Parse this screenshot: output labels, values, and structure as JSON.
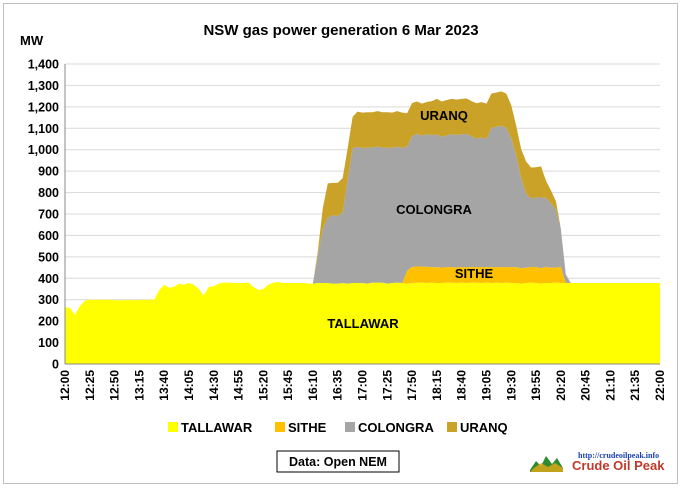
{
  "chart_data": {
    "type": "area",
    "stacked": true,
    "title": "NSW gas power generation 6 Mar 2023",
    "ylabel": "MW",
    "ylim": [
      0,
      1400
    ],
    "yticks": [
      "0",
      "100",
      "200",
      "300",
      "400",
      "500",
      "600",
      "700",
      "800",
      "900",
      "1,000",
      "1,100",
      "1,200",
      "1,300",
      "1,400"
    ],
    "xlabels": [
      "12:00",
      "12:25",
      "12:50",
      "13:15",
      "13:40",
      "14:05",
      "14:30",
      "14:55",
      "15:20",
      "15:45",
      "16:10",
      "16:35",
      "17:00",
      "17:25",
      "17:50",
      "18:15",
      "18:40",
      "19:05",
      "19:30",
      "19:55",
      "20:20",
      "20:45",
      "21:10",
      "21:35",
      "22:00"
    ],
    "grid": true,
    "legend_position": "bottom",
    "x": [
      "12:00",
      "12:05",
      "12:10",
      "12:15",
      "12:20",
      "12:25",
      "12:30",
      "12:35",
      "12:40",
      "12:45",
      "12:50",
      "12:55",
      "13:00",
      "13:05",
      "13:10",
      "13:15",
      "13:20",
      "13:25",
      "13:30",
      "13:35",
      "13:40",
      "13:45",
      "13:50",
      "13:55",
      "14:00",
      "14:05",
      "14:10",
      "14:15",
      "14:20",
      "14:25",
      "14:30",
      "14:35",
      "14:40",
      "14:45",
      "14:50",
      "14:55",
      "15:00",
      "15:05",
      "15:10",
      "15:15",
      "15:20",
      "15:25",
      "15:30",
      "15:35",
      "15:40",
      "15:45",
      "15:50",
      "15:55",
      "16:00",
      "16:05",
      "16:10",
      "16:15",
      "16:20",
      "16:25",
      "16:30",
      "16:35",
      "16:40",
      "16:45",
      "16:50",
      "16:55",
      "17:00",
      "17:05",
      "17:10",
      "17:15",
      "17:20",
      "17:25",
      "17:30",
      "17:35",
      "17:40",
      "17:45",
      "17:50",
      "17:55",
      "18:00",
      "18:05",
      "18:10",
      "18:15",
      "18:20",
      "18:25",
      "18:30",
      "18:35",
      "18:40",
      "18:45",
      "18:50",
      "18:55",
      "19:00",
      "19:05",
      "19:10",
      "19:15",
      "19:20",
      "19:25",
      "19:30",
      "19:35",
      "19:40",
      "19:45",
      "19:50",
      "19:55",
      "20:00",
      "20:05",
      "20:10",
      "20:15",
      "20:20",
      "20:25",
      "20:30",
      "20:35",
      "20:40",
      "20:45",
      "20:50",
      "20:55",
      "21:00",
      "21:05",
      "21:10",
      "21:15",
      "21:20",
      "21:25",
      "21:30",
      "21:35",
      "21:40",
      "21:45",
      "21:50",
      "21:55",
      "22:00"
    ],
    "series": [
      {
        "name": "TALLAWAR",
        "color": "#ffff00",
        "values": [
          265,
          262,
          230,
          270,
          295,
          300,
          300,
          300,
          300,
          300,
          298,
          297,
          298,
          298,
          298,
          298,
          300,
          300,
          300,
          345,
          370,
          355,
          360,
          375,
          370,
          378,
          370,
          350,
          320,
          360,
          362,
          375,
          380,
          380,
          378,
          378,
          378,
          380,
          360,
          345,
          350,
          370,
          380,
          382,
          378,
          378,
          378,
          378,
          378,
          375,
          375,
          378,
          378,
          378,
          375,
          375,
          378,
          375,
          378,
          378,
          378,
          375,
          380,
          380,
          380,
          375,
          378,
          380,
          378,
          375,
          378,
          380,
          380,
          378,
          380,
          378,
          378,
          380,
          380,
          378,
          380,
          378,
          380,
          380,
          378,
          380,
          378,
          380,
          378,
          380,
          378,
          378,
          375,
          378,
          380,
          378,
          375,
          378,
          378,
          380,
          378,
          378,
          378,
          378,
          378,
          378,
          378,
          378,
          378,
          378,
          378,
          378,
          378,
          378,
          378,
          378,
          378,
          378,
          378,
          378,
          378
        ]
      },
      {
        "name": "SITHE",
        "color": "#ffc000",
        "values": [
          0,
          0,
          0,
          0,
          0,
          0,
          0,
          0,
          0,
          0,
          0,
          0,
          0,
          0,
          0,
          0,
          0,
          0,
          0,
          0,
          0,
          0,
          0,
          0,
          0,
          0,
          0,
          0,
          0,
          0,
          0,
          0,
          0,
          0,
          0,
          0,
          0,
          0,
          0,
          0,
          0,
          0,
          0,
          0,
          0,
          0,
          0,
          0,
          0,
          0,
          0,
          0,
          0,
          0,
          0,
          0,
          0,
          0,
          0,
          0,
          0,
          0,
          0,
          0,
          0,
          0,
          0,
          0,
          0,
          60,
          75,
          75,
          75,
          75,
          72,
          74,
          72,
          72,
          72,
          73,
          72,
          74,
          72,
          72,
          74,
          72,
          74,
          72,
          74,
          72,
          74,
          74,
          72,
          72,
          72,
          75,
          72,
          75,
          72,
          70,
          75,
          0,
          0,
          0,
          0,
          0,
          0,
          0,
          0,
          0,
          0,
          0,
          0,
          0,
          0,
          0,
          0,
          0,
          0,
          0,
          0
        ]
      },
      {
        "name": "COLONGRA",
        "color": "#a5a5a5",
        "values": [
          0,
          0,
          0,
          0,
          0,
          0,
          0,
          0,
          0,
          0,
          0,
          0,
          0,
          0,
          0,
          0,
          0,
          0,
          0,
          0,
          0,
          0,
          0,
          0,
          0,
          0,
          0,
          0,
          0,
          0,
          0,
          0,
          0,
          0,
          0,
          0,
          0,
          0,
          0,
          0,
          0,
          0,
          0,
          0,
          0,
          0,
          0,
          0,
          0,
          0,
          0,
          130,
          250,
          305,
          320,
          315,
          330,
          485,
          630,
          635,
          630,
          635,
          630,
          635,
          630,
          635,
          630,
          635,
          630,
          580,
          610,
          620,
          610,
          620,
          615,
          620,
          610,
          615,
          620,
          618,
          620,
          622,
          610,
          600,
          605,
          598,
          650,
          655,
          660,
          650,
          600,
          520,
          420,
          345,
          320,
          325,
          330,
          322,
          300,
          270,
          180,
          40,
          0,
          0,
          0,
          0,
          0,
          0,
          0,
          0,
          0,
          0,
          0,
          0,
          0,
          0,
          0,
          0,
          0,
          0,
          0
        ]
      },
      {
        "name": "URANQ",
        "color": "#c9a227",
        "values": [
          0,
          0,
          0,
          0,
          0,
          0,
          0,
          0,
          0,
          0,
          0,
          0,
          0,
          0,
          0,
          0,
          0,
          0,
          0,
          0,
          0,
          0,
          0,
          0,
          0,
          0,
          0,
          0,
          0,
          0,
          0,
          0,
          0,
          0,
          0,
          0,
          0,
          0,
          0,
          0,
          0,
          0,
          0,
          0,
          0,
          0,
          0,
          0,
          0,
          0,
          0,
          20,
          100,
          160,
          150,
          155,
          160,
          145,
          145,
          165,
          165,
          165,
          165,
          165,
          165,
          165,
          165,
          165,
          165,
          155,
          155,
          150,
          150,
          150,
          160,
          165,
          165,
          165,
          165,
          165,
          165,
          165,
          165,
          165,
          165,
          165,
          160,
          160,
          160,
          160,
          155,
          140,
          135,
          150,
          145,
          140,
          145,
          80,
          60,
          40,
          0,
          0,
          0,
          0,
          0,
          0,
          0,
          0,
          0,
          0,
          0,
          0,
          0,
          0,
          0,
          0,
          0,
          0,
          0,
          0,
          0
        ]
      }
    ],
    "annotations": [
      "URANQ",
      "COLONGRA",
      "SITHE",
      "TALLAWAR"
    ],
    "source": "Data: Open NEM"
  },
  "branding": {
    "url": "http://crudeoilpeak.info",
    "name": "Crude Oil Peak"
  }
}
